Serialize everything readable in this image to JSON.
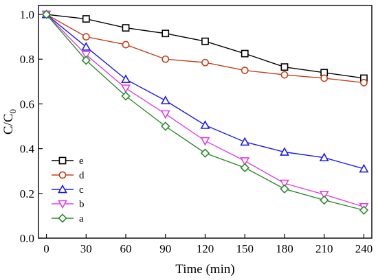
{
  "chart_data": {
    "type": "line",
    "xlabel": "Time (min)",
    "ylabel": "C/C",
    "ylabel_subscript": "0",
    "xlim": [
      -6,
      246
    ],
    "ylim": [
      0,
      1.04
    ],
    "xticks": [
      0,
      30,
      60,
      90,
      120,
      150,
      180,
      210,
      240
    ],
    "yticks": [
      0.0,
      0.2,
      0.4,
      0.6,
      0.8,
      1.0
    ],
    "ytick_labels": [
      "0.0",
      "0.2",
      "0.4",
      "0.6",
      "0.8",
      "1.0"
    ],
    "grid": false,
    "legend_position": "bottom-left",
    "x": [
      0,
      30,
      60,
      90,
      120,
      150,
      180,
      210,
      240
    ],
    "series": [
      {
        "name": "e",
        "marker": "square",
        "color": "#000000",
        "values": [
          1.0,
          0.98,
          0.94,
          0.915,
          0.88,
          0.825,
          0.765,
          0.74,
          0.715
        ]
      },
      {
        "name": "d",
        "marker": "circle",
        "color": "#c0401a",
        "values": [
          1.0,
          0.9,
          0.865,
          0.8,
          0.785,
          0.75,
          0.73,
          0.715,
          0.695
        ]
      },
      {
        "name": "c",
        "marker": "triangle-up",
        "color": "#1c1cf0",
        "values": [
          1.0,
          0.855,
          0.71,
          0.615,
          0.505,
          0.43,
          0.385,
          0.36,
          0.31
        ]
      },
      {
        "name": "b",
        "marker": "triangle-down",
        "color": "#e040e0",
        "values": [
          1.0,
          0.82,
          0.67,
          0.555,
          0.435,
          0.345,
          0.245,
          0.195,
          0.14
        ]
      },
      {
        "name": "a",
        "marker": "diamond",
        "color": "#2e8b2e",
        "values": [
          1.0,
          0.795,
          0.635,
          0.5,
          0.38,
          0.315,
          0.22,
          0.17,
          0.125
        ]
      }
    ]
  }
}
